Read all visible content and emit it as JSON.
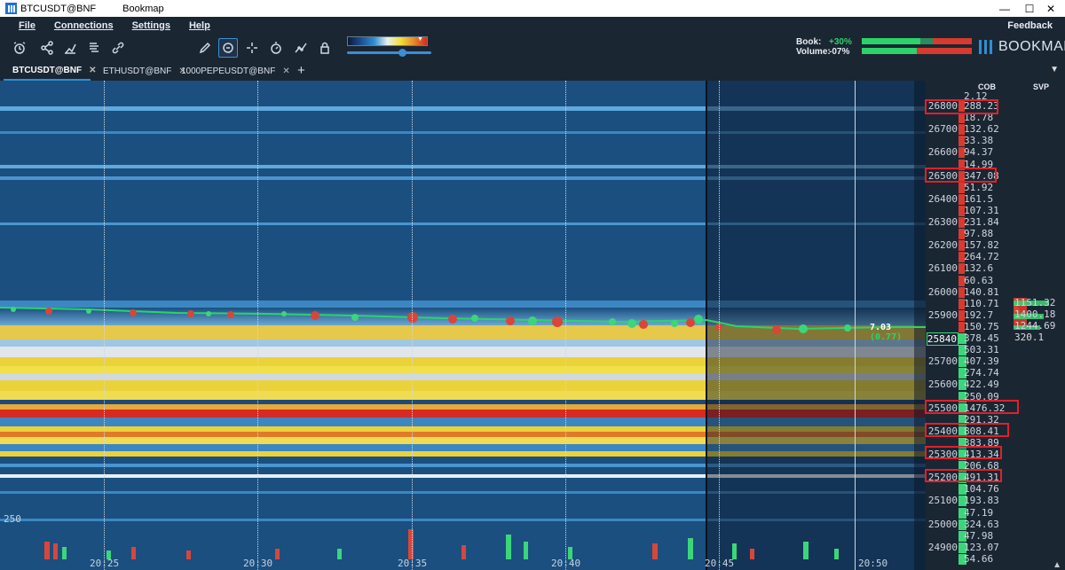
{
  "window": {
    "tab_title": "BTCUSDT@BNF",
    "app_title": "Bookmap",
    "minimize": "—",
    "maximize": "☐",
    "close": "✕"
  },
  "menu": {
    "file": "File",
    "connections": "Connections",
    "settings": "Settings",
    "help": "Help",
    "feedback": "Feedback"
  },
  "toolbar": {
    "icons": [
      "alarm-icon",
      "share-icon",
      "indicators-icon",
      "layers-icon",
      "link-icon",
      "brightness-slider",
      "zoom-slider",
      "pencil-icon",
      "chat-icon",
      "crosshair-icon",
      "timer-icon",
      "analytics-icon",
      "lock-icon"
    ]
  },
  "stats": {
    "book_label": "Book:",
    "book_value": "+30%",
    "volume_label": "Volume:",
    "volume_value": "-07%"
  },
  "logo": "BOOKMAP",
  "tabs": [
    {
      "label": "BTCUSDT@BNF",
      "close": "✕"
    },
    {
      "label": "ETHUSDT@BNF",
      "close": "✕"
    },
    {
      "label": "1000PEPEUSDT@BNF",
      "close": "✕"
    }
  ],
  "add_tab": "+",
  "headers": {
    "cob": "COB",
    "svp": "SVP"
  },
  "prices": [
    {
      "p": "26800",
      "v": "288.23"
    },
    {
      "p": "",
      "v": "18.78"
    },
    {
      "p": "26700",
      "v": "132.62"
    },
    {
      "p": "",
      "v": "33.38"
    },
    {
      "p": "26600",
      "v": "94.37"
    },
    {
      "p": "",
      "v": "14.99"
    },
    {
      "p": "26500",
      "v": "347.08"
    },
    {
      "p": "",
      "v": "51.92"
    },
    {
      "p": "26400",
      "v": "161.5"
    },
    {
      "p": "",
      "v": "107.31"
    },
    {
      "p": "26300",
      "v": "231.84"
    },
    {
      "p": "",
      "v": "97.88"
    },
    {
      "p": "26200",
      "v": "157.82"
    },
    {
      "p": "",
      "v": "264.72"
    },
    {
      "p": "26100",
      "v": "132.6"
    },
    {
      "p": "",
      "v": "60.63"
    },
    {
      "p": "26000",
      "v": "140.81"
    },
    {
      "p": "",
      "v": "110.71"
    },
    {
      "p": "25900",
      "v": "192.7"
    },
    {
      "p": "",
      "v": "150.75"
    },
    {
      "p": "25840",
      "v": "378.45"
    },
    {
      "p": "",
      "v": "503.31"
    },
    {
      "p": "25700",
      "v": "407.39"
    },
    {
      "p": "",
      "v": "274.74"
    },
    {
      "p": "25600",
      "v": "422.49"
    },
    {
      "p": "",
      "v": "250.09"
    },
    {
      "p": "25500",
      "v": "1476.32"
    },
    {
      "p": "",
      "v": "291.32"
    },
    {
      "p": "25400",
      "v": "808.41"
    },
    {
      "p": "",
      "v": "383.89"
    },
    {
      "p": "25300",
      "v": "413.34"
    },
    {
      "p": "",
      "v": "206.68"
    },
    {
      "p": "25200",
      "v": "491.31"
    },
    {
      "p": "",
      "v": "104.76"
    },
    {
      "p": "25100",
      "v": "193.83"
    },
    {
      "p": "",
      "v": "47.19"
    },
    {
      "p": "25000",
      "v": "324.63"
    },
    {
      "p": "",
      "v": "47.98"
    },
    {
      "p": "24900",
      "v": "123.07"
    },
    {
      "p": "",
      "v": "54.66"
    }
  ],
  "top_partial": "2.12",
  "trade_label": "7.03",
  "trade_label_paren": "(0.77)",
  "svp_values": [
    "1151.32",
    "1400.18",
    "1244.69",
    "320.1"
  ],
  "time_labels": [
    "20:25",
    "20:30",
    "20:35",
    "20:40",
    "20:45",
    "20:50"
  ],
  "volume_axis": "250",
  "scroll_up": "▲"
}
